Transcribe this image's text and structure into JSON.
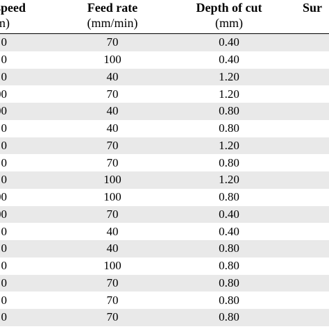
{
  "headers": {
    "speed": {
      "title": "speed",
      "unit": "m)"
    },
    "feed": {
      "title": "Feed rate",
      "unit": "(mm/min)"
    },
    "depth": {
      "title": "Depth of cut",
      "unit": "(mm)"
    },
    "surface": {
      "title": "Sur"
    }
  },
  "rows": [
    {
      "speed": "0",
      "feed": "70",
      "depth": "0.40"
    },
    {
      "speed": "0",
      "feed": "100",
      "depth": "0.40"
    },
    {
      "speed": "0",
      "feed": "40",
      "depth": "1.20"
    },
    {
      "speed": "00",
      "feed": "70",
      "depth": "1.20"
    },
    {
      "speed": "00",
      "feed": "40",
      "depth": "0.80"
    },
    {
      "speed": "0",
      "feed": "40",
      "depth": "0.80"
    },
    {
      "speed": "0",
      "feed": "70",
      "depth": "1.20"
    },
    {
      "speed": "0",
      "feed": "70",
      "depth": "0.80"
    },
    {
      "speed": "0",
      "feed": "100",
      "depth": "1.20"
    },
    {
      "speed": "00",
      "feed": "100",
      "depth": "0.80"
    },
    {
      "speed": "00",
      "feed": "70",
      "depth": "0.40"
    },
    {
      "speed": "0",
      "feed": "40",
      "depth": "0.40"
    },
    {
      "speed": "0",
      "feed": "40",
      "depth": "0.80"
    },
    {
      "speed": "0",
      "feed": "100",
      "depth": "0.80"
    },
    {
      "speed": "0",
      "feed": "70",
      "depth": "0.80"
    },
    {
      "speed": "0",
      "feed": "70",
      "depth": "0.80"
    },
    {
      "speed": "0",
      "feed": "70",
      "depth": "0.80"
    }
  ]
}
